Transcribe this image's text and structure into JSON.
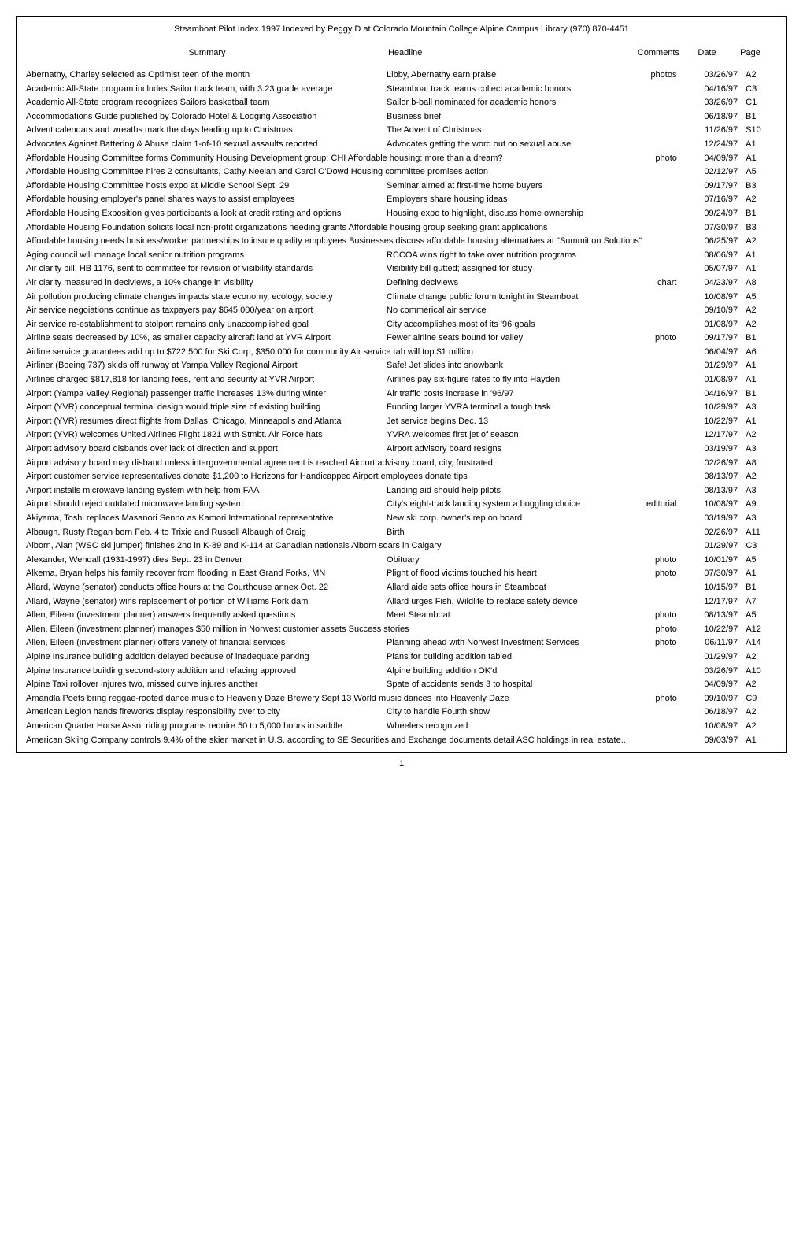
{
  "header": "Steamboat Pilot Index  1997    Indexed by Peggy D at Colorado  Mountain College Alpine Campus Library   (970) 870-4451",
  "columns": {
    "summary": "Summary",
    "headline": "Headline",
    "comments": "Comments",
    "date": "Date",
    "page": "Page"
  },
  "rows": [
    {
      "summary": "Abernathy, Charley selected as Optimist teen of the month",
      "headline": "Libby, Abernathy earn praise",
      "comments": "photos",
      "date": "03/26/97",
      "page": "A2"
    },
    {
      "summary": "Academic All-State program includes Sailor track team, with 3.23 grade average",
      "headline": "Steamboat track teams collect academic honors",
      "comments": "",
      "date": "04/16/97",
      "page": "C3"
    },
    {
      "summary": "Academic All-State program recognizes Sailors basketball team",
      "headline": "Sailor b-ball nominated for academic honors",
      "comments": "",
      "date": "03/26/97",
      "page": "C1"
    },
    {
      "summary": "Accommodations Guide published by Colorado Hotel & Lodging Association",
      "headline": "Business brief",
      "comments": "",
      "date": "06/18/97",
      "page": "B1"
    },
    {
      "summary": "Advent calendars and wreaths mark the days leading up to Christmas",
      "headline": "The Advent of Christmas",
      "comments": "",
      "date": "11/26/97",
      "page": "S10"
    },
    {
      "summary": "Advocates Against Battering & Abuse claim 1-of-10 sexual assaults reported",
      "headline": "Advocates getting the word out on sexual abuse",
      "comments": "",
      "date": "12/24/97",
      "page": "A1"
    },
    {
      "summary": "Affordable Housing Committee forms Community Housing Development group:  CHI Affordable housing:  more than a dream?",
      "headline": "",
      "comments": "photo",
      "date": "04/09/97",
      "page": "A1"
    },
    {
      "summary": "Affordable Housing Committee hires 2 consultants, Cathy Neelan and Carol O'Dowd Housing committee promises action",
      "headline": "",
      "comments": "",
      "date": "02/12/97",
      "page": "A5"
    },
    {
      "summary": "Affordable Housing Committee hosts expo at Middle School Sept. 29",
      "headline": "Seminar aimed at first-time home buyers",
      "comments": "",
      "date": "09/17/97",
      "page": "B3"
    },
    {
      "summary": "Affordable housing employer's panel shares ways to assist employees",
      "headline": "Employers share housing ideas",
      "comments": "",
      "date": "07/16/97",
      "page": "A2"
    },
    {
      "summary": "Affordable Housing Exposition gives participants a look at credit rating and options",
      "headline": "Housing expo to highlight, discuss home ownership",
      "comments": "",
      "date": "09/24/97",
      "page": "B1"
    },
    {
      "summary": "Affordable Housing Foundation solicits local non-profit organizations needing grants Affordable housing group seeking grant applications",
      "headline": "",
      "comments": "",
      "date": "07/30/97",
      "page": "B3"
    },
    {
      "summary": "Affordable housing needs business/worker partnerships to insure quality employees Businesses discuss affordable housing alternatives at \"Summit on Solutions\"",
      "headline": "",
      "comments": "",
      "date": "06/25/97",
      "page": "A2"
    },
    {
      "summary": "Aging council will manage local senior nutrition programs",
      "headline": "RCCOA wins right to take over nutrition programs",
      "comments": "",
      "date": "08/06/97",
      "page": "A1"
    },
    {
      "summary": "Air clarity bill, HB 1176, sent to committee for revision of visibility standards",
      "headline": "Visibility bill gutted; assigned for study",
      "comments": "",
      "date": "05/07/97",
      "page": "A1"
    },
    {
      "summary": "Air clarity measured in deciviews, a 10% change in visibility",
      "headline": "Defining deciviews",
      "comments": "chart",
      "date": "04/23/97",
      "page": "A8"
    },
    {
      "summary": "Air pollution producing climate changes impacts state economy, ecology, society",
      "headline": "Climate change public forum tonight in Steamboat",
      "comments": "",
      "date": "10/08/97",
      "page": "A5"
    },
    {
      "summary": "Air service negoiations continue as taxpayers pay $645,000/year on airport",
      "headline": "No commerical air service",
      "comments": "",
      "date": "09/10/97",
      "page": "A2"
    },
    {
      "summary": "Air service re-establishment to stolport remains only unaccomplished goal",
      "headline": "City accomplishes most of its '96 goals",
      "comments": "",
      "date": "01/08/97",
      "page": "A2"
    },
    {
      "summary": "Airline seats decreased by 10%, as smaller capacity aircraft land at YVR Airport",
      "headline": "Fewer airline seats bound for valley",
      "comments": "photo",
      "date": "09/17/97",
      "page": "B1"
    },
    {
      "summary": "Airline service guarantees add up to $722,500 for Ski Corp, $350,000 for community Air service tab will top $1 million",
      "headline": "",
      "comments": "",
      "date": "06/04/97",
      "page": "A6"
    },
    {
      "summary": "Airliner (Boeing 737) skids off runway at Yampa Valley Regional Airport",
      "headline": "Safe!  Jet slides into snowbank",
      "comments": "",
      "date": "01/29/97",
      "page": "A1"
    },
    {
      "summary": "Airlines charged $817,818 for landing fees, rent and security at YVR Airport",
      "headline": "Airlines pay six-figure rates to fly into Hayden",
      "comments": "",
      "date": "01/08/97",
      "page": "A1"
    },
    {
      "summary": "Airport (Yampa Valley Regional) passenger traffic increases 13% during winter",
      "headline": "Air traffic posts increase in '96/97",
      "comments": "",
      "date": "04/16/97",
      "page": "B1"
    },
    {
      "summary": "Airport (YVR) conceptual terminal design would triple size of existing building",
      "headline": "Funding larger YVRA terminal a tough task",
      "comments": "",
      "date": "10/29/97",
      "page": "A3"
    },
    {
      "summary": "Airport (YVR) resumes direct flights from Dallas, Chicago, Minneapolis and Atlanta",
      "headline": "Jet service begins Dec. 13",
      "comments": "",
      "date": "10/22/97",
      "page": "A1"
    },
    {
      "summary": "Airport (YVR) welcomes United Airlines Flight 1821 with Stmbt. Air Force hats",
      "headline": "YVRA welcomes first jet of season",
      "comments": "",
      "date": "12/17/97",
      "page": "A2"
    },
    {
      "summary": "Airport advisory board disbands over lack of direction and support",
      "headline": "Airport advisory board resigns",
      "comments": "",
      "date": "03/19/97",
      "page": "A3"
    },
    {
      "summary": "Airport advisory board may disband unless intergovernmental agreement is reached Airport advisory board, city, frustrated",
      "headline": "",
      "comments": "",
      "date": "02/26/97",
      "page": "A8"
    },
    {
      "summary": "Airport customer service representatives donate $1,200 to Horizons for Handicapped Airport employees donate tips",
      "headline": "",
      "comments": "",
      "date": "08/13/97",
      "page": "A2"
    },
    {
      "summary": "Airport installs microwave landing system with help from FAA",
      "headline": "Landing aid should help pilots",
      "comments": "",
      "date": "08/13/97",
      "page": "A3"
    },
    {
      "summary": "Airport should reject outdated microwave landing system",
      "headline": "City's eight-track landing system a boggling choice",
      "comments": "editorial",
      "date": "10/08/97",
      "page": "A9"
    },
    {
      "summary": "Akiyama, Toshi replaces Masanori Senno as Kamori International representative",
      "headline": "New ski corp. owner's rep on board",
      "comments": "",
      "date": "03/19/97",
      "page": "A3"
    },
    {
      "summary": "Albaugh, Rusty Regan born Feb. 4 to Trixie and Russell Albaugh of Craig",
      "headline": "Birth",
      "comments": "",
      "date": "02/26/97",
      "page": "A11"
    },
    {
      "summary": "Alborn, Alan (WSC ski jumper) finishes 2nd in K-89 and K-114 at Canadian nationals Alborn soars in Calgary",
      "headline": "",
      "comments": "",
      "date": "01/29/97",
      "page": "C3"
    },
    {
      "summary": "Alexander, Wendall (1931-1997) dies Sept. 23 in Denver",
      "headline": "Obituary",
      "comments": "photo",
      "date": "10/01/97",
      "page": "A5"
    },
    {
      "summary": "Alkema, Bryan helps his family recover from flooding in East Grand Forks, MN",
      "headline": "Plight of flood victims touched his heart",
      "comments": "photo",
      "date": "07/30/97",
      "page": "A1"
    },
    {
      "summary": "Allard, Wayne (senator) conducts office hours at the Courthouse annex Oct. 22",
      "headline": "Allard aide sets office hours in Steamboat",
      "comments": "",
      "date": "10/15/97",
      "page": "B1"
    },
    {
      "summary": "Allard, Wayne (senator) wins replacement of portion of Williams Fork dam",
      "headline": "Allard urges Fish, Wildlife to replace safety device",
      "comments": "",
      "date": "12/17/97",
      "page": "A7"
    },
    {
      "summary": "Allen, Eileen (investment planner) answers frequently asked questions",
      "headline": "Meet Steamboat",
      "comments": "photo",
      "date": "08/13/97",
      "page": "A5"
    },
    {
      "summary": "Allen, Eileen (investment planner) manages $50 million in Norwest customer assets Success stories",
      "headline": "",
      "comments": "photo",
      "date": "10/22/97",
      "page": "A12"
    },
    {
      "summary": "Allen, Eileen (investment planner) offers variety of financial services",
      "headline": "Planning ahead with Norwest Investment Services",
      "comments": "photo",
      "date": "06/11/97",
      "page": "A14"
    },
    {
      "summary": "Alpine Insurance building addition delayed because of inadequate parking",
      "headline": "Plans for building addition tabled",
      "comments": "",
      "date": "01/29/97",
      "page": "A2"
    },
    {
      "summary": "Alpine Insurance building second-story addition and refacing approved",
      "headline": "Alpine building addition OK'd",
      "comments": "",
      "date": "03/26/97",
      "page": "A10"
    },
    {
      "summary": "Alpine Taxi rollover injures two, missed curve injures another",
      "headline": "Spate of accidents sends 3 to hospital",
      "comments": "",
      "date": "04/09/97",
      "page": "A2"
    },
    {
      "summary": "Amandla Poets bring reggae-rooted dance music to Heavenly Daze Brewery Sept 13 World music dances into Heavenly Daze",
      "headline": "",
      "comments": "photo",
      "date": "09/10/97",
      "page": "C9"
    },
    {
      "summary": "American Legion hands fireworks display responsibility over to city",
      "headline": "City to handle Fourth show",
      "comments": "",
      "date": "06/18/97",
      "page": "A2"
    },
    {
      "summary": "American Quarter Horse Assn. riding programs require 50 to 5,000 hours in saddle",
      "headline": "Wheelers recognized",
      "comments": "",
      "date": "10/08/97",
      "page": "A2"
    },
    {
      "summary": "American Skiing Company controls 9.4% of the skier market in U.S. according to SE Securities and Exchange documents detail ASC holdings in real estate...",
      "headline": "",
      "comments": "",
      "date": "09/03/97",
      "page": "A1"
    }
  ],
  "pageNumber": "1"
}
